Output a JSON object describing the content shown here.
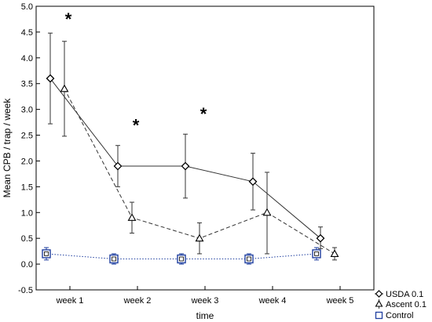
{
  "chart_data": {
    "type": "line",
    "title": "",
    "xlabel": "time",
    "ylabel": "Mean CPB / trap / week",
    "categories": [
      "week 1",
      "week 2",
      "week 3",
      "week 4",
      "week 5"
    ],
    "ylim": [
      -0.5,
      5.0
    ],
    "yticks": [
      "-0.5",
      "0.0",
      "0.5",
      "1.0",
      "1.5",
      "2.0",
      "2.5",
      "3.0",
      "3.5",
      "4.0",
      "4.5",
      "5.0"
    ],
    "grid": false,
    "legend_position": "bottom-right-outside",
    "significance_marker": "*",
    "significance_markers_at": [
      "week 1",
      "week 2",
      "week 3"
    ],
    "series": [
      {
        "name": "USDA 0.1",
        "marker": "diamond",
        "line_style": "solid",
        "color": "#333333",
        "values": [
          3.6,
          1.9,
          1.9,
          1.6,
          0.5
        ],
        "error_low": [
          2.72,
          1.5,
          1.28,
          1.05,
          0.3
        ],
        "error_high": [
          4.48,
          2.3,
          2.52,
          2.15,
          0.72
        ]
      },
      {
        "name": "Ascent 0.1",
        "marker": "triangle",
        "line_style": "dashed",
        "color": "#333333",
        "values": [
          3.4,
          0.9,
          0.5,
          1.0,
          0.2
        ],
        "error_low": [
          2.48,
          0.6,
          0.2,
          0.2,
          0.08
        ],
        "error_high": [
          4.32,
          1.2,
          0.8,
          1.78,
          0.32
        ]
      },
      {
        "name": "Control",
        "marker": "square",
        "line_style": "dotted",
        "color": "#1f3fa0",
        "values": [
          0.2,
          0.1,
          0.1,
          0.1,
          0.2
        ],
        "error_low": [
          0.08,
          0.0,
          0.0,
          0.0,
          0.08
        ],
        "error_high": [
          0.32,
          0.2,
          0.2,
          0.2,
          0.32
        ]
      }
    ]
  }
}
